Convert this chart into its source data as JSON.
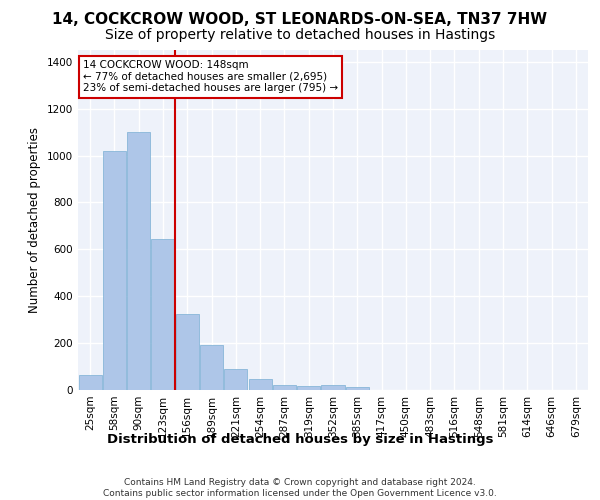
{
  "title": "14, COCKCROW WOOD, ST LEONARDS-ON-SEA, TN37 7HW",
  "subtitle": "Size of property relative to detached houses in Hastings",
  "xlabel": "Distribution of detached houses by size in Hastings",
  "ylabel": "Number of detached properties",
  "footer_line1": "Contains HM Land Registry data © Crown copyright and database right 2024.",
  "footer_line2": "Contains public sector information licensed under the Open Government Licence v3.0.",
  "categories": [
    "25sqm",
    "58sqm",
    "90sqm",
    "123sqm",
    "156sqm",
    "189sqm",
    "221sqm",
    "254sqm",
    "287sqm",
    "319sqm",
    "352sqm",
    "385sqm",
    "417sqm",
    "450sqm",
    "483sqm",
    "516sqm",
    "548sqm",
    "581sqm",
    "614sqm",
    "646sqm",
    "679sqm"
  ],
  "values": [
    65,
    1020,
    1100,
    645,
    325,
    190,
    90,
    47,
    22,
    18,
    20,
    12,
    0,
    0,
    0,
    0,
    0,
    0,
    0,
    0,
    0
  ],
  "bar_color": "#aec6e8",
  "bar_edgecolor": "#7aafd4",
  "vline_color": "#cc0000",
  "annotation_text": "14 COCKCROW WOOD: 148sqm\n← 77% of detached houses are smaller (2,695)\n23% of semi-detached houses are larger (795) →",
  "annotation_box_edgecolor": "#cc0000",
  "annotation_box_facecolor": "#ffffff",
  "ylim": [
    0,
    1450
  ],
  "yticks": [
    0,
    200,
    400,
    600,
    800,
    1000,
    1200,
    1400
  ],
  "background_color": "#eef2fa",
  "grid_color": "#ffffff",
  "title_fontsize": 11,
  "subtitle_fontsize": 10,
  "ylabel_fontsize": 8.5,
  "xlabel_fontsize": 9.5,
  "tick_fontsize": 7.5,
  "annotation_fontsize": 7.5,
  "footer_fontsize": 6.5
}
